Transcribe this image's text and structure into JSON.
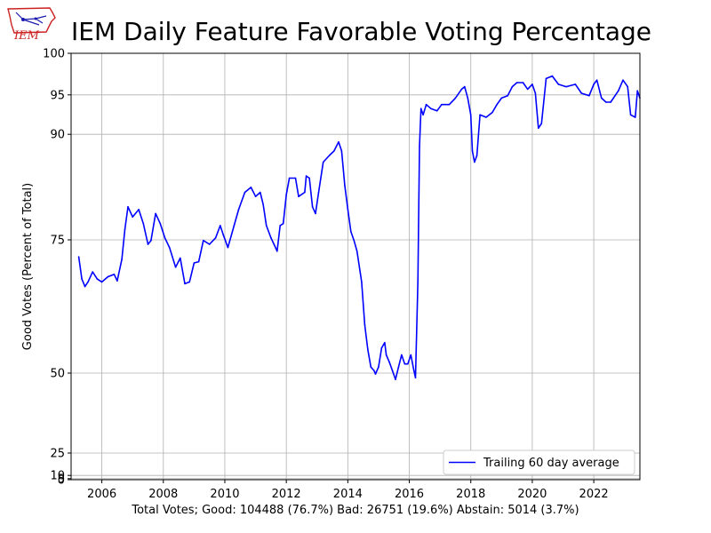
{
  "logo": {
    "text": "IEM",
    "icon": "iowa-state-outline-logo"
  },
  "footer": {
    "text": "Total Votes; Good: 104488 (76.7%) Bad: 26751 (19.6%) Abstain: 5014 (3.7%)"
  },
  "colors": {
    "line": "#0000ff",
    "grid": "#b0b0b0",
    "logo_red": "#cc2222",
    "logo_blue": "#1a1ab0"
  },
  "chart_data": {
    "type": "line",
    "title": "IEM Daily Feature Favorable Voting Percentage",
    "xlabel": "",
    "ylabel": "Good Votes (Percent of Total)",
    "xlim": [
      2005.0,
      2023.5
    ],
    "ylim": [
      0,
      100
    ],
    "x_ticks": [
      2006,
      2008,
      2010,
      2012,
      2014,
      2016,
      2018,
      2020,
      2022
    ],
    "y_ticks": [
      0,
      5,
      10,
      25,
      50,
      75,
      90,
      95,
      100
    ],
    "y_scale": "power, exponent 2 (tick spacing widens toward 100)",
    "grid": true,
    "legend": {
      "position": "lower-right",
      "entries": [
        "Trailing 60 day average"
      ]
    },
    "series": [
      {
        "name": "Trailing 60 day average",
        "color": "#0000ff",
        "points": [
          [
            2005.25,
            72.3
          ],
          [
            2005.35,
            68.6
          ],
          [
            2005.45,
            67.3
          ],
          [
            2005.55,
            68.1
          ],
          [
            2005.7,
            69.8
          ],
          [
            2005.85,
            68.6
          ],
          [
            2006.0,
            68.1
          ],
          [
            2006.2,
            69.0
          ],
          [
            2006.4,
            69.4
          ],
          [
            2006.5,
            68.3
          ],
          [
            2006.65,
            71.9
          ],
          [
            2006.75,
            76.6
          ],
          [
            2006.85,
            80.0
          ],
          [
            2007.0,
            78.5
          ],
          [
            2007.2,
            79.6
          ],
          [
            2007.35,
            77.5
          ],
          [
            2007.5,
            74.3
          ],
          [
            2007.6,
            74.9
          ],
          [
            2007.75,
            79.0
          ],
          [
            2007.9,
            77.5
          ],
          [
            2008.05,
            75.3
          ],
          [
            2008.2,
            73.8
          ],
          [
            2008.4,
            70.6
          ],
          [
            2008.55,
            72.1
          ],
          [
            2008.7,
            67.8
          ],
          [
            2008.85,
            68.1
          ],
          [
            2009.0,
            71.3
          ],
          [
            2009.15,
            71.5
          ],
          [
            2009.3,
            74.9
          ],
          [
            2009.5,
            74.3
          ],
          [
            2009.7,
            75.3
          ],
          [
            2009.85,
            77.2
          ],
          [
            2009.95,
            75.8
          ],
          [
            2010.1,
            73.8
          ],
          [
            2010.3,
            77.2
          ],
          [
            2010.45,
            79.6
          ],
          [
            2010.65,
            82.1
          ],
          [
            2010.85,
            82.8
          ],
          [
            2011.0,
            81.5
          ],
          [
            2011.15,
            82.1
          ],
          [
            2011.25,
            80.3
          ],
          [
            2011.35,
            77.2
          ],
          [
            2011.5,
            75.3
          ],
          [
            2011.6,
            74.3
          ],
          [
            2011.7,
            73.2
          ],
          [
            2011.8,
            77.2
          ],
          [
            2011.9,
            77.5
          ],
          [
            2012.0,
            81.8
          ],
          [
            2012.1,
            84.1
          ],
          [
            2012.3,
            84.1
          ],
          [
            2012.4,
            81.5
          ],
          [
            2012.6,
            82.1
          ],
          [
            2012.65,
            84.4
          ],
          [
            2012.75,
            84.1
          ],
          [
            2012.85,
            80.0
          ],
          [
            2012.95,
            79.0
          ],
          [
            2013.05,
            82.1
          ],
          [
            2013.2,
            86.3
          ],
          [
            2013.4,
            87.2
          ],
          [
            2013.55,
            87.8
          ],
          [
            2013.7,
            89.0
          ],
          [
            2013.8,
            87.8
          ],
          [
            2013.9,
            83.1
          ],
          [
            2014.0,
            79.6
          ],
          [
            2014.1,
            76.3
          ],
          [
            2014.2,
            74.9
          ],
          [
            2014.3,
            73.2
          ],
          [
            2014.45,
            68.1
          ],
          [
            2014.55,
            60.3
          ],
          [
            2014.65,
            55.3
          ],
          [
            2014.75,
            51.4
          ],
          [
            2014.85,
            50.6
          ],
          [
            2014.9,
            49.8
          ],
          [
            2015.0,
            51.4
          ],
          [
            2015.1,
            55.6
          ],
          [
            2015.2,
            56.7
          ],
          [
            2015.25,
            54.1
          ],
          [
            2015.35,
            52.5
          ],
          [
            2015.45,
            50.6
          ],
          [
            2015.55,
            48.5
          ],
          [
            2015.65,
            51.4
          ],
          [
            2015.75,
            54.1
          ],
          [
            2015.85,
            52.1
          ],
          [
            2015.95,
            52.1
          ],
          [
            2016.05,
            54.1
          ],
          [
            2016.15,
            50.6
          ],
          [
            2016.2,
            48.9
          ],
          [
            2016.28,
            68.1
          ],
          [
            2016.33,
            88.4
          ],
          [
            2016.38,
            93.3
          ],
          [
            2016.45,
            92.5
          ],
          [
            2016.55,
            93.8
          ],
          [
            2016.7,
            93.3
          ],
          [
            2016.9,
            93.0
          ],
          [
            2017.05,
            93.8
          ],
          [
            2017.3,
            93.8
          ],
          [
            2017.5,
            94.6
          ],
          [
            2017.7,
            95.7
          ],
          [
            2017.8,
            96.0
          ],
          [
            2017.9,
            94.6
          ],
          [
            2018.0,
            92.5
          ],
          [
            2018.05,
            87.8
          ],
          [
            2018.12,
            86.3
          ],
          [
            2018.2,
            87.2
          ],
          [
            2018.3,
            92.5
          ],
          [
            2018.5,
            92.2
          ],
          [
            2018.7,
            92.8
          ],
          [
            2018.85,
            93.8
          ],
          [
            2019.0,
            94.6
          ],
          [
            2019.2,
            94.9
          ],
          [
            2019.35,
            96.0
          ],
          [
            2019.5,
            96.5
          ],
          [
            2019.7,
            96.5
          ],
          [
            2019.85,
            95.7
          ],
          [
            2020.0,
            96.3
          ],
          [
            2020.1,
            95.2
          ],
          [
            2020.2,
            90.8
          ],
          [
            2020.3,
            91.4
          ],
          [
            2020.45,
            97.0
          ],
          [
            2020.65,
            97.3
          ],
          [
            2020.85,
            96.3
          ],
          [
            2021.1,
            96.0
          ],
          [
            2021.4,
            96.3
          ],
          [
            2021.6,
            95.2
          ],
          [
            2021.85,
            94.9
          ],
          [
            2022.0,
            96.3
          ],
          [
            2022.1,
            96.8
          ],
          [
            2022.25,
            94.6
          ],
          [
            2022.4,
            94.1
          ],
          [
            2022.55,
            94.1
          ],
          [
            2022.8,
            95.5
          ],
          [
            2022.95,
            96.8
          ],
          [
            2023.1,
            96.0
          ],
          [
            2023.2,
            92.5
          ],
          [
            2023.35,
            92.2
          ],
          [
            2023.42,
            95.5
          ],
          [
            2023.5,
            94.6
          ]
        ]
      }
    ]
  }
}
